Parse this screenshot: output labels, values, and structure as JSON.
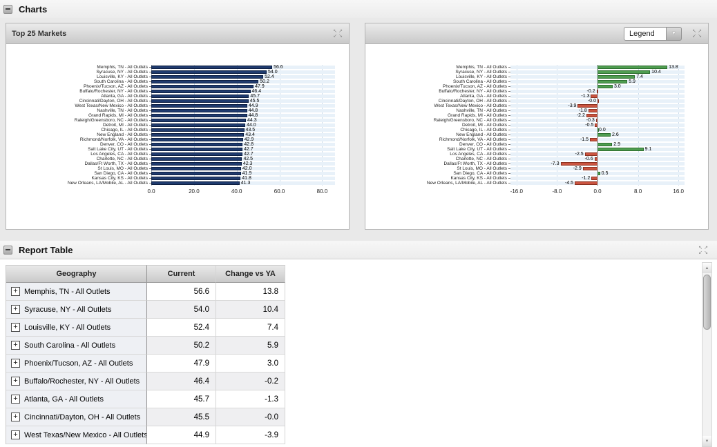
{
  "charts_section": {
    "title": "Charts",
    "left_panel": {
      "title": "Top 25 Markets"
    },
    "right_panel": {
      "legend_button": "Legend"
    }
  },
  "report_section": {
    "title": "Report Table",
    "table": {
      "columns": [
        "Geography",
        "Current",
        "Change vs YA"
      ],
      "rows": [
        {
          "geography": "Memphis, TN - All Outlets",
          "current": "56.6",
          "change": "13.8"
        },
        {
          "geography": "Syracuse, NY - All Outlets",
          "current": "54.0",
          "change": "10.4"
        },
        {
          "geography": "Louisville, KY - All Outlets",
          "current": "52.4",
          "change": "7.4"
        },
        {
          "geography": "South Carolina - All Outlets",
          "current": "50.2",
          "change": "5.9"
        },
        {
          "geography": "Phoenix/Tucson, AZ - All Outlets",
          "current": "47.9",
          "change": "3.0"
        },
        {
          "geography": "Buffalo/Rochester, NY - All Outlets",
          "current": "46.4",
          "change": "-0.2"
        },
        {
          "geography": "Atlanta, GA - All Outlets",
          "current": "45.7",
          "change": "-1.3"
        },
        {
          "geography": "Cincinnati/Dayton, OH - All Outlets",
          "current": "45.5",
          "change": "-0.0"
        },
        {
          "geography": "West Texas/New Mexico - All Outlets",
          "current": "44.9",
          "change": "-3.9"
        }
      ]
    }
  },
  "chart_data": [
    {
      "type": "bar",
      "orientation": "horizontal",
      "title": "Top 25 Markets",
      "categories": [
        "Memphis, TN - All Outlets",
        "Syracuse, NY - All Outlets",
        "Louisville, KY - All Outlets",
        "South Carolina - All Outlets",
        "Phoenix/Tucson, AZ - All Outlets",
        "Buffalo/Rochester, NY - All Outlets",
        "Atlanta, GA - All Outlets",
        "Cincinnati/Dayton, OH - All Outlets",
        "West Texas/New Mexico - All Outlets",
        "Nashville, TN - All Outlets",
        "Grand Rapids, MI - All Outlets",
        "Raleigh/Greensboro, NC - All Outlets",
        "Detroit, MI - All Outlets",
        "Chicago, IL - All Outlets",
        "New England - All Outlets",
        "Richmond/Norfolk, VA - All Outlets",
        "Denver, CO - All Outlets",
        "Salt Lake City, UT - All Outlets",
        "Los Angeles, CA - All Outlets",
        "Charlotte, NC - All Outlets",
        "Dallas/Ft Worth, TX - All Outlets",
        "St Louis, MO - All Outlets",
        "San Diego, CA - All Outlets",
        "Kansas City, KS - All Outlets",
        "New Orleans, LA/Mobile, AL - All Outlets"
      ],
      "values": [
        "56.6",
        "54.0",
        "52.4",
        "50.2",
        "47.9",
        "46.4",
        "45.7",
        "45.5",
        "44.9",
        "44.8",
        "44.8",
        "44.3",
        "44.0",
        "43.5",
        "43.4",
        "42.9",
        "42.8",
        "42.7",
        "42.7",
        "42.5",
        "42.3",
        "42.0",
        "41.9",
        "41.8",
        "41.3"
      ],
      "xlim": [
        0,
        86
      ],
      "tick_values": [
        0,
        20,
        40,
        60,
        80
      ],
      "ticks": [
        "0.0",
        "20.0",
        "40.0",
        "60.0",
        "80.0"
      ],
      "grid": true,
      "legend": "none",
      "bar_color": "#1f3a6d",
      "bar_border": "#0d1f42"
    },
    {
      "type": "bar",
      "orientation": "horizontal",
      "title": "",
      "categories": [
        "Memphis, TN - All Outlets",
        "Syracuse, NY - All Outlets",
        "Louisville, KY - All Outlets",
        "South Carolina - All Outlets",
        "Phoenix/Tucson, AZ - All Outlets",
        "Buffalo/Rochester, NY - All Outlets",
        "Atlanta, GA - All Outlets",
        "Cincinnati/Dayton, OH - All Outlets",
        "West Texas/New Mexico - All Outlets",
        "Nashville, TN - All Outlets",
        "Grand Rapids, MI - All Outlets",
        "Raleigh/Greensboro, NC - All Outlets",
        "Detroit, MI - All Outlets",
        "Chicago, IL - All Outlets",
        "New England - All Outlets",
        "Richmond/Norfolk, VA - All Outlets",
        "Denver, CO - All Outlets",
        "Salt Lake City, UT - All Outlets",
        "Los Angeles, CA - All Outlets",
        "Charlotte, NC - All Outlets",
        "Dallas/Ft Worth, TX - All Outlets",
        "St Louis, MO - All Outlets",
        "San Diego, CA - All Outlets",
        "Kansas City, KS - All Outlets",
        "New Orleans, LA/Mobile, AL - All Outlets"
      ],
      "values": [
        "13.8",
        "10.4",
        "7.4",
        "5.9",
        "3.0",
        "-0.2",
        "-1.3",
        "-0.0",
        "-3.9",
        "-1.8",
        "-2.2",
        "-0.3",
        "-0.5",
        "0.0",
        "2.6",
        "-1.5",
        "2.9",
        "9.1",
        "-2.5",
        "-0.6",
        "-7.3",
        "-2.9",
        "0.5",
        "-1.2",
        "-4.5"
      ],
      "xlim": [
        -17.2,
        17.2
      ],
      "tick_values": [
        -16,
        -8,
        0,
        8,
        16
      ],
      "ticks": [
        "-16.0",
        "-8.0",
        "0.0",
        "8.0",
        "16.0"
      ],
      "grid": true,
      "legend": "dropdown",
      "positive_color": "#4f9d50",
      "positive_border": "#2c6e2e",
      "negative_color": "#ca5440",
      "negative_border": "#8c3120"
    }
  ],
  "icons": {
    "maximize": "resize-arrows",
    "collapse": "minus",
    "expand_row": "plus",
    "dropdown_arrow": "chevron-down",
    "scroll_up": "triangle-up",
    "scroll_down": "triangle-down"
  },
  "colors": {
    "bar_navy": "#1f3a6d",
    "bar_positive_green": "#4f9d50",
    "bar_negative_red": "#ca5440",
    "band_blue": "#e8f1f9",
    "page_background": "#e9e9e9"
  }
}
